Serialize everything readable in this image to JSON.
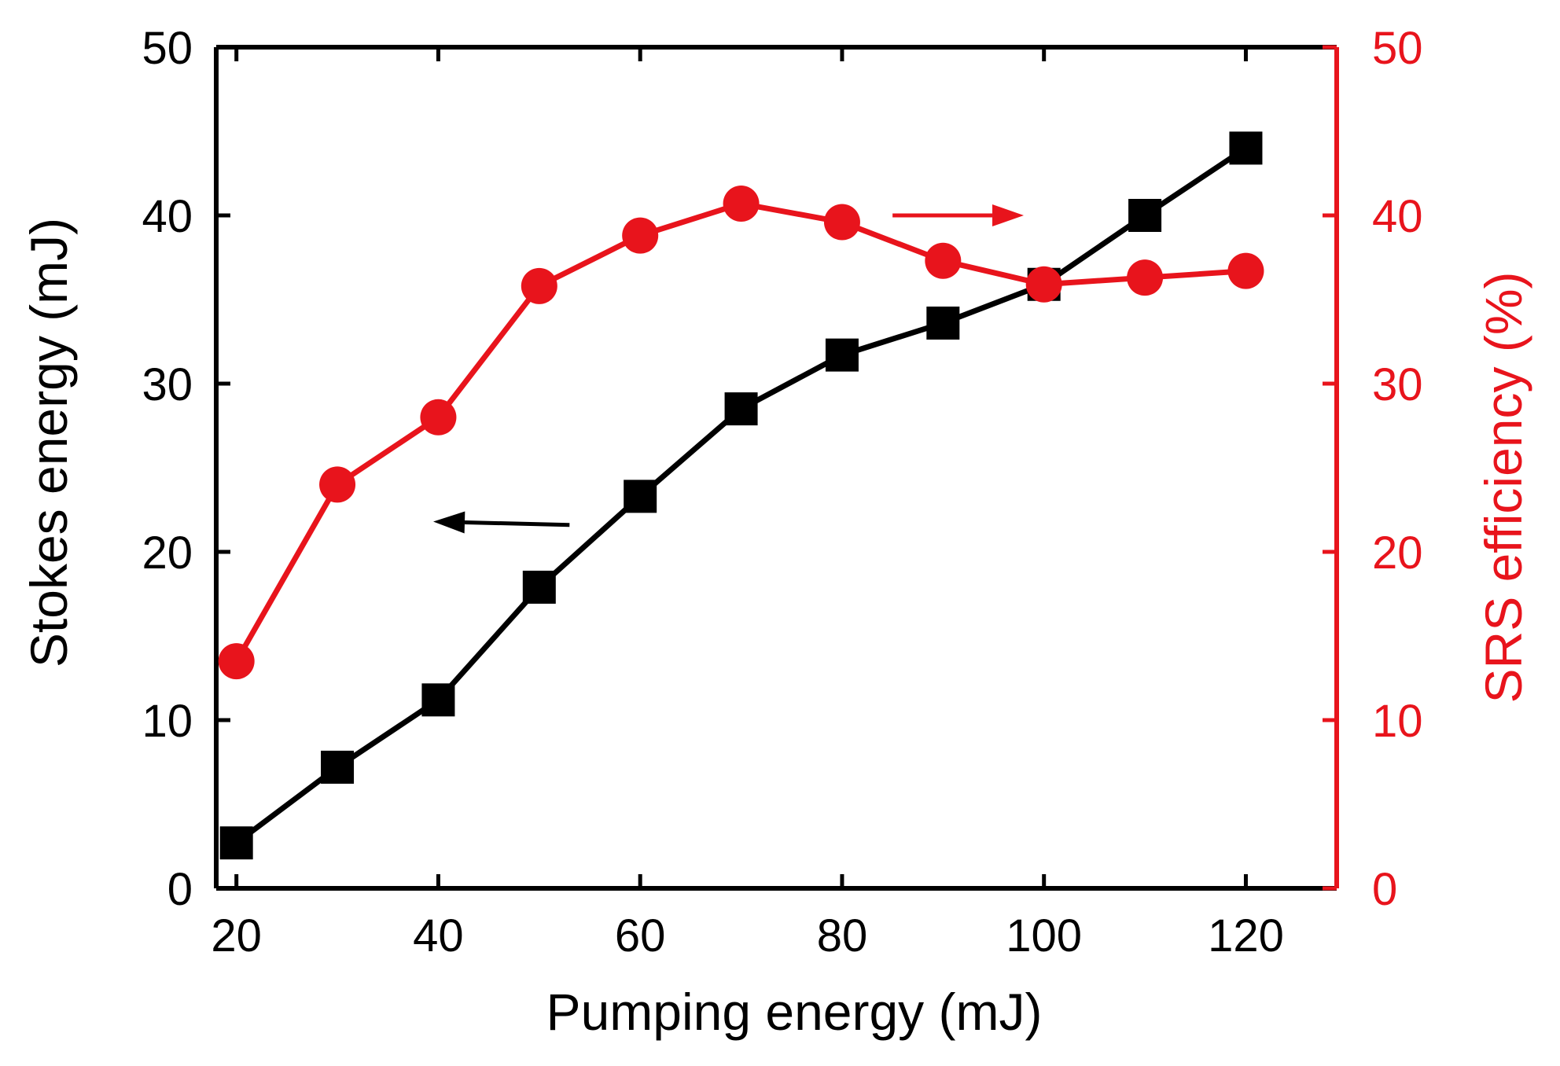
{
  "chart_data": {
    "type": "line",
    "title": "",
    "xlabel": "Pumping energy (mJ)",
    "ylabel": "Stokes energy (mJ)",
    "y2label": "SRS efficiency (%)",
    "xlim": [
      18,
      129
    ],
    "ylim": [
      0,
      50
    ],
    "y2lim": [
      0,
      50
    ],
    "x_ticks": [
      20,
      40,
      60,
      80,
      100,
      120
    ],
    "x_tick_labels": [
      "20",
      "40",
      "60",
      "80",
      "100",
      "120"
    ],
    "y_ticks": [
      0,
      10,
      20,
      30,
      40,
      50
    ],
    "y_tick_labels": [
      "0",
      "10",
      "20",
      "30",
      "40",
      "50"
    ],
    "y2_ticks": [
      0,
      10,
      20,
      30,
      40,
      50
    ],
    "y2_tick_labels": [
      "0",
      "10",
      "20",
      "30",
      "40",
      "50"
    ],
    "grid": false,
    "x": [
      20,
      30,
      40,
      50,
      60,
      70,
      80,
      90,
      100,
      110,
      120
    ],
    "series": [
      {
        "name": "Stokes energy",
        "axis": "left",
        "marker": "square",
        "color": "#000000",
        "values": [
          2.7,
          7.2,
          11.2,
          17.9,
          23.3,
          28.5,
          31.7,
          33.6,
          35.9,
          40.0,
          44.0
        ]
      },
      {
        "name": "SRS efficiency",
        "axis": "right",
        "marker": "circle",
        "color": "#e8141c",
        "values": [
          13.5,
          24.0,
          28.0,
          35.8,
          38.8,
          40.7,
          39.6,
          37.3,
          35.9,
          36.3,
          36.7
        ]
      }
    ],
    "annotations": [
      {
        "type": "arrow",
        "direction": "left",
        "series": "Stokes energy",
        "from": [
          53,
          21.6
        ],
        "to": [
          39.5,
          21.8
        ],
        "color": "#000000"
      },
      {
        "type": "arrow",
        "direction": "right",
        "series": "SRS efficiency",
        "from": [
          85,
          40.0
        ],
        "to": [
          98,
          40.0
        ],
        "color": "#e8141c"
      }
    ],
    "colors": {
      "left_axis": "#000000",
      "right_axis": "#e8141c"
    }
  }
}
